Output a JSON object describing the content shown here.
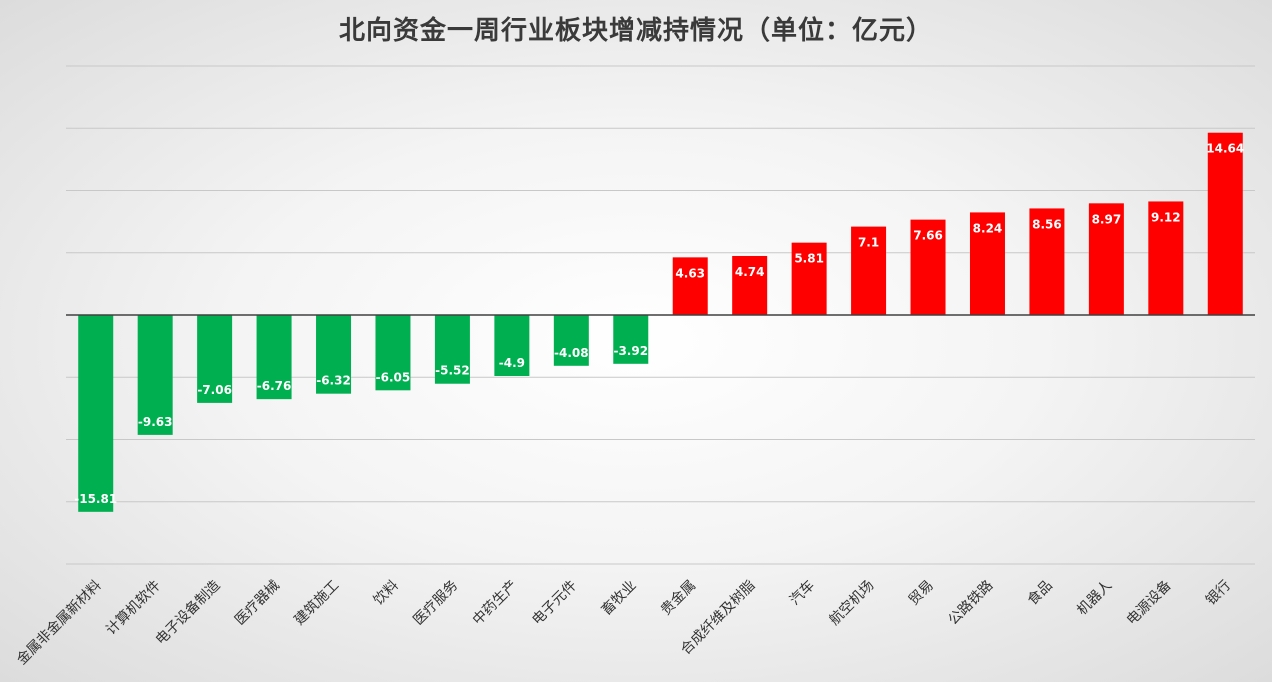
{
  "chart_data": {
    "type": "bar",
    "title": "北向资金一周行业板块增减持情况（单位：亿元）",
    "categories": [
      "金属非金属新材料",
      "计算机软件",
      "电子设备制造",
      "医疗器械",
      "建筑施工",
      "饮料",
      "医疗服务",
      "中药生产",
      "电子元件",
      "畜牧业",
      "贵金属",
      "合成纤维及树脂",
      "汽车",
      "航空机场",
      "贸易",
      "公路铁路",
      "食品",
      "机器人",
      "电源设备",
      "银行"
    ],
    "values": [
      -15.81,
      -9.63,
      -7.06,
      -6.76,
      -6.32,
      -6.05,
      -5.52,
      -4.9,
      -4.08,
      -3.92,
      4.63,
      4.74,
      5.81,
      7.1,
      7.66,
      8.24,
      8.56,
      8.97,
      9.12,
      14.64
    ],
    "value_labels": [
      "-15.81",
      "-9.63",
      "-7.06",
      "-6.76",
      "-6.32",
      "-6.05",
      "-5.52",
      "-4.9",
      "-4.08",
      "-3.92",
      "4.63",
      "4.74",
      "5.81",
      "7.1",
      "7.66",
      "8.24",
      "8.56",
      "8.97",
      "9.12",
      "14.64"
    ],
    "xlabel": "",
    "ylabel": "",
    "ylim": [
      -20,
      20
    ],
    "grid": true,
    "legend": "none",
    "colors": {
      "positive": "#ff0000",
      "negative": "#00b050",
      "axis": "#404040",
      "grid": "#c8c8c8",
      "label": "#ffffff"
    }
  }
}
